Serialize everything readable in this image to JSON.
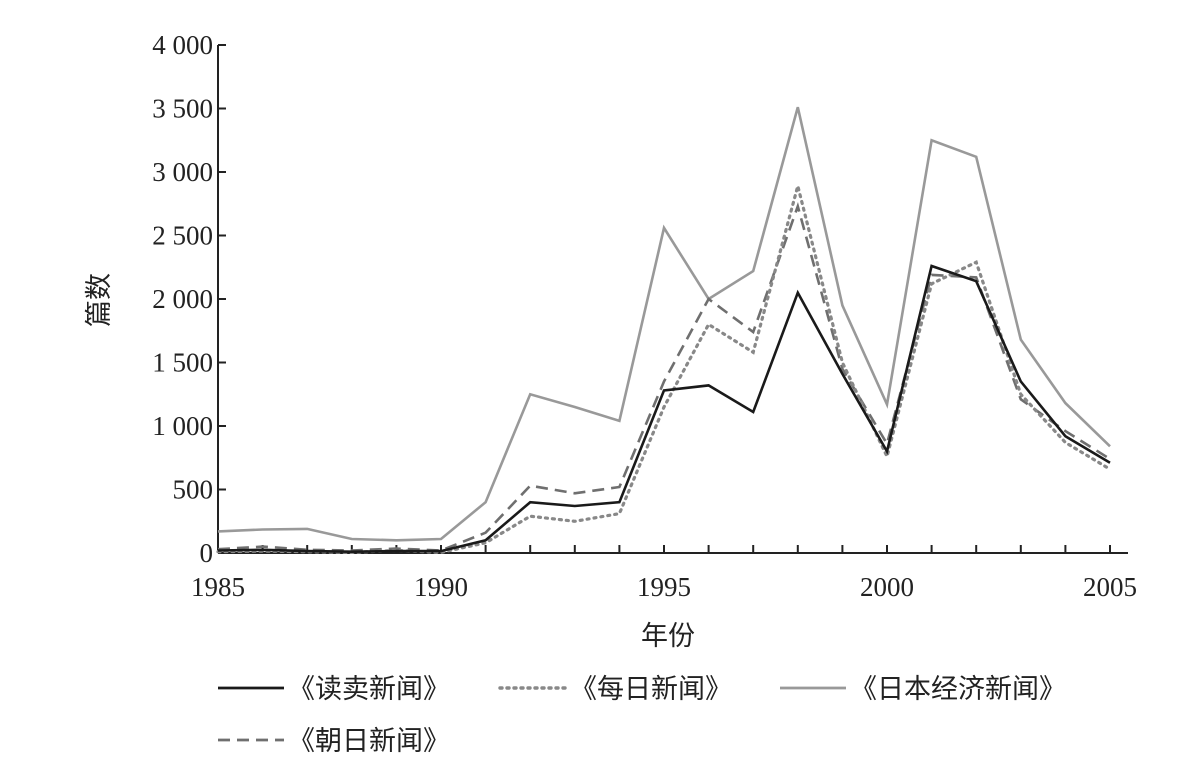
{
  "chart_data": {
    "type": "line",
    "xlabel": "年份",
    "ylabel": "篇数",
    "xlim": [
      1985,
      2005
    ],
    "ylim": [
      0,
      4000
    ],
    "x_ticks": [
      1985,
      1990,
      1995,
      2000,
      2005
    ],
    "x_tick_labels": [
      "1985",
      "1990",
      "1995",
      "2000",
      "2005"
    ],
    "y_ticks": [
      0,
      500,
      1000,
      1500,
      2000,
      2500,
      3000,
      3500,
      4000
    ],
    "y_tick_labels": [
      "0",
      "500",
      "1 000",
      "1 500",
      "2 000",
      "2 500",
      "3 000",
      "3 500",
      "4 000"
    ],
    "grid": false,
    "legend_position": "bottom",
    "x": [
      1985,
      1986,
      1987,
      1988,
      1989,
      1990,
      1991,
      1992,
      1993,
      1994,
      1995,
      1996,
      1997,
      1998,
      1999,
      2000,
      2001,
      2002,
      2003,
      2004,
      2005
    ],
    "series": [
      {
        "name": "《读卖新闻》",
        "color": "#1a1a1a",
        "dash": "solid",
        "values": [
          20,
          25,
          15,
          10,
          15,
          15,
          100,
          400,
          370,
          400,
          1280,
          1320,
          1110,
          2050,
          1410,
          800,
          2260,
          2140,
          1350,
          920,
          710
        ]
      },
      {
        "name": "《每日新闻》",
        "color": "#888888",
        "dash": "dotted",
        "values": [
          10,
          15,
          10,
          5,
          20,
          5,
          80,
          290,
          250,
          310,
          1150,
          1800,
          1580,
          2890,
          1500,
          760,
          2120,
          2290,
          1250,
          870,
          660
        ]
      },
      {
        "name": "《日本经济新闻》",
        "color": "#999999",
        "dash": "solid",
        "values": [
          170,
          185,
          190,
          110,
          100,
          110,
          400,
          1250,
          1150,
          1040,
          2560,
          2000,
          2220,
          3510,
          1950,
          1170,
          3250,
          3120,
          1680,
          1180,
          840
        ]
      },
      {
        "name": "《朝日新闻》",
        "color": "#6f6f6f",
        "dash": "dashed",
        "values": [
          30,
          50,
          25,
          20,
          35,
          20,
          160,
          530,
          470,
          520,
          1350,
          2000,
          1740,
          2730,
          1450,
          860,
          2190,
          2170,
          1210,
          960,
          740
        ]
      }
    ]
  }
}
